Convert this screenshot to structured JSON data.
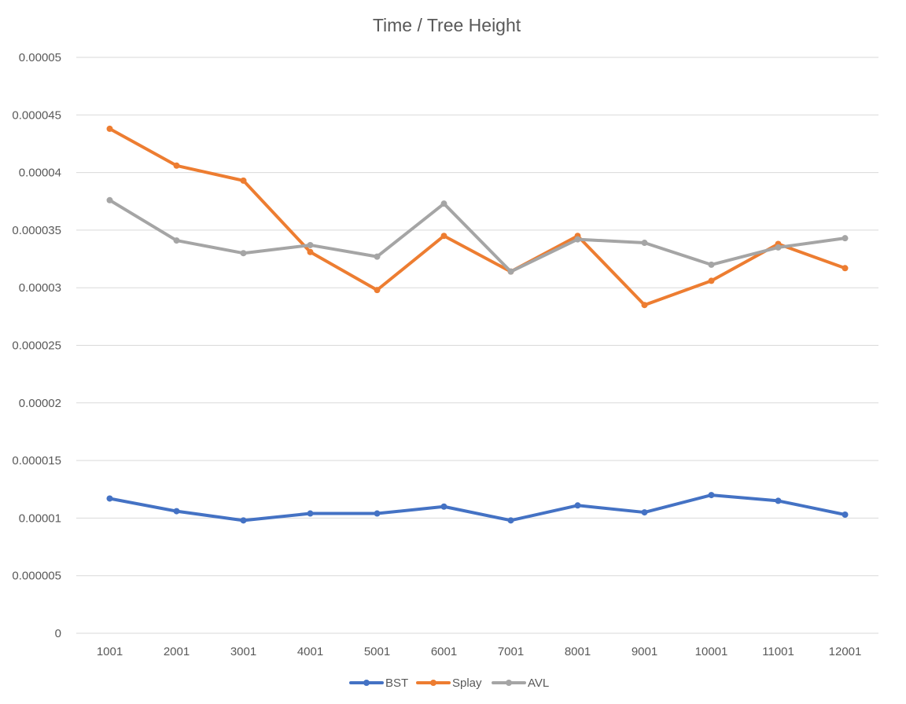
{
  "chart_data": {
    "type": "line",
    "title": "Time / Tree Height",
    "xlabel": "",
    "ylabel": "",
    "categories": [
      "1001",
      "2001",
      "3001",
      "4001",
      "5001",
      "6001",
      "7001",
      "8001",
      "9001",
      "10001",
      "11001",
      "12001"
    ],
    "ylim": [
      0,
      5e-05
    ],
    "y_ticks": [
      "0",
      "0.000005",
      "0.00001",
      "0.000015",
      "0.00002",
      "0.000025",
      "0.00003",
      "0.000035",
      "0.00004",
      "0.000045",
      "0.00005"
    ],
    "grid": true,
    "legend_position": "bottom",
    "series": [
      {
        "name": "BST",
        "color": "#4472c4",
        "values": [
          1.17e-05,
          1.06e-05,
          9.8e-06,
          1.04e-05,
          1.04e-05,
          1.1e-05,
          9.8e-06,
          1.11e-05,
          1.05e-05,
          1.2e-05,
          1.15e-05,
          1.03e-05
        ]
      },
      {
        "name": "Splay",
        "color": "#ed7d31",
        "values": [
          4.38e-05,
          4.06e-05,
          3.93e-05,
          3.31e-05,
          2.98e-05,
          3.45e-05,
          3.14e-05,
          3.45e-05,
          2.85e-05,
          3.06e-05,
          3.38e-05,
          3.17e-05
        ]
      },
      {
        "name": "AVL",
        "color": "#a5a5a5",
        "values": [
          3.76e-05,
          3.41e-05,
          3.3e-05,
          3.37e-05,
          3.27e-05,
          3.73e-05,
          3.14e-05,
          3.42e-05,
          3.39e-05,
          3.2e-05,
          3.35e-05,
          3.43e-05
        ]
      }
    ]
  }
}
